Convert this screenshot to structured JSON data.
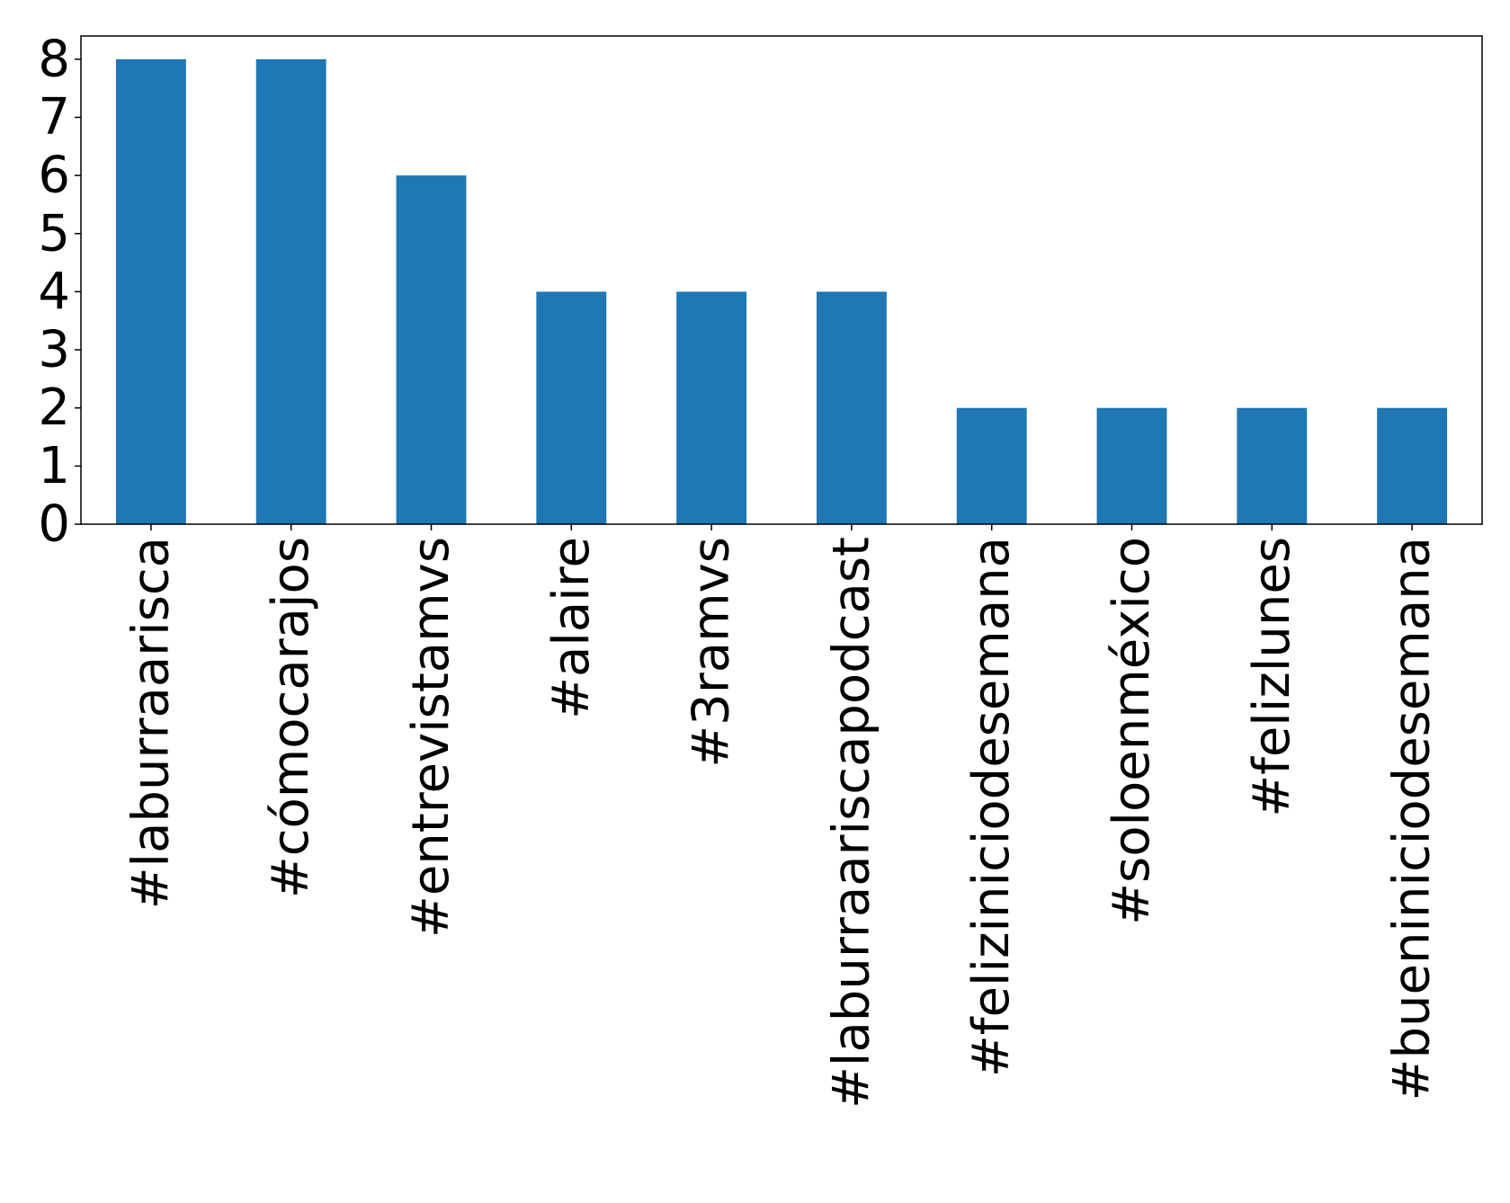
{
  "chart_data": {
    "type": "bar",
    "title": "",
    "xlabel": "",
    "ylabel": "",
    "categories": [
      "#laburraarisca",
      "#cómocarajos",
      "#entrevistamvs",
      "#alaire",
      "#3ramvs",
      "#laburraariscapodcast",
      "#feliziniciodesemana",
      "#soloenméxico",
      "#felizlunes",
      "#bueniniciodesemana"
    ],
    "values": [
      8,
      8,
      6,
      4,
      4,
      4,
      2,
      2,
      2,
      2
    ],
    "ylim": [
      0,
      8.4
    ],
    "yticks": [
      0,
      1,
      2,
      3,
      4,
      5,
      6,
      7,
      8
    ],
    "bar_color": "#1f77b4",
    "grid": false,
    "legend": "none"
  }
}
